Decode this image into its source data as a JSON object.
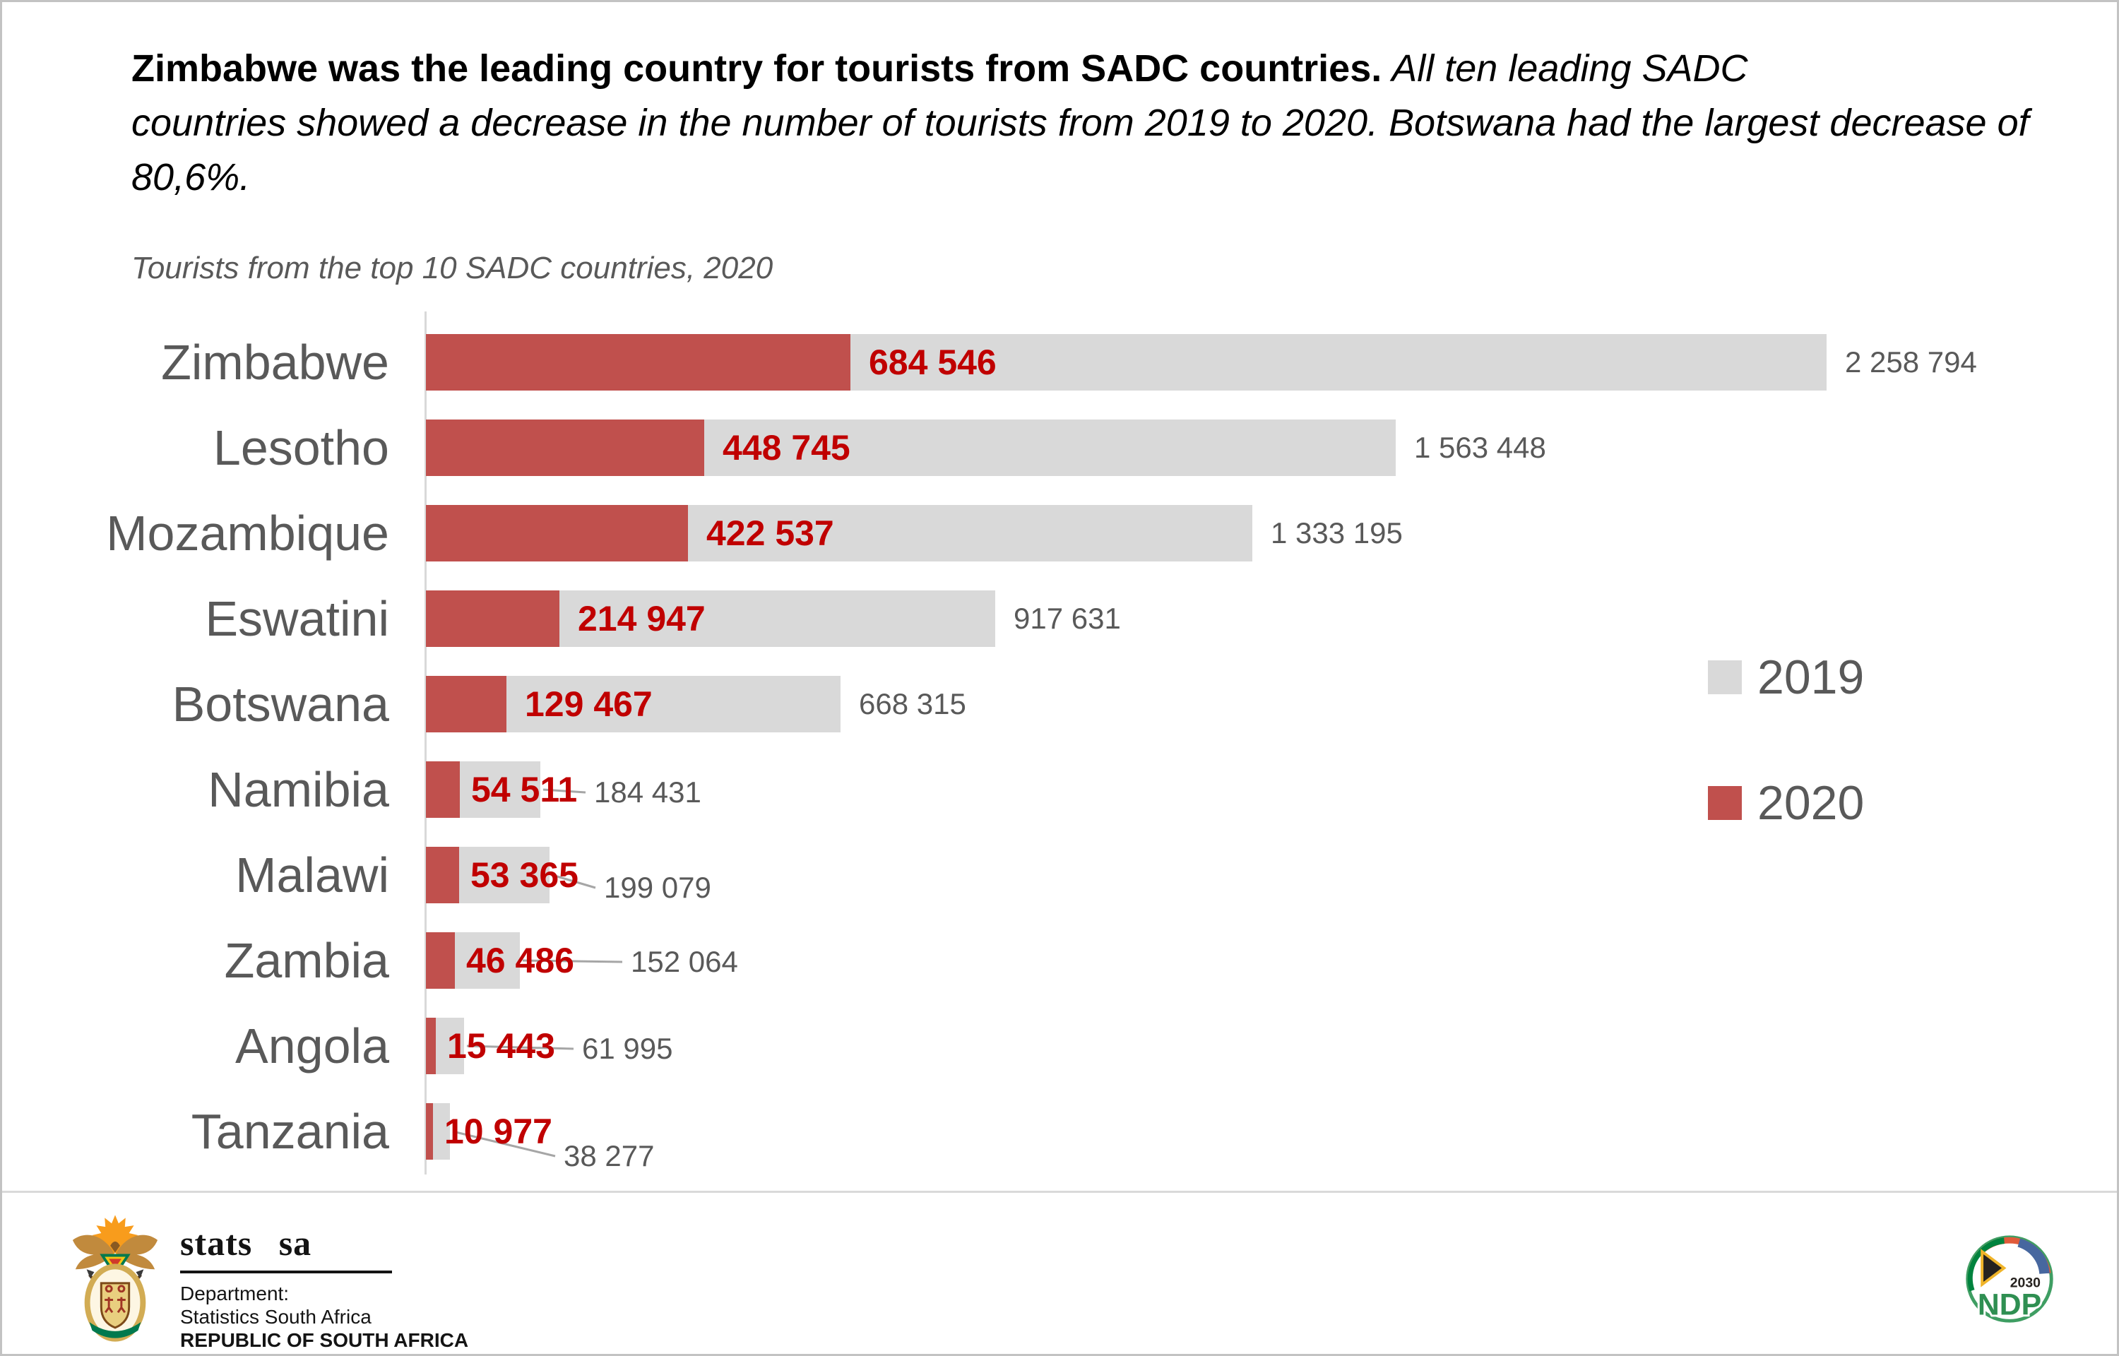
{
  "page": {
    "background": "#ffffff",
    "border_color": "#c3c3c3"
  },
  "headline": {
    "bold": "Zimbabwe was the leading country for tourists from SADC countries.",
    "italic_lines": [
      "All ten leading SADC",
      "countries showed a decrease in the number of tourists from 2019 to 2020. Botswana had the largest decrease of",
      "80,6%."
    ]
  },
  "chart_data": {
    "type": "bar",
    "orientation": "horizontal",
    "title": "Tourists from the top 10 SADC countries, 2020",
    "categories": [
      "Zimbabwe",
      "Lesotho",
      "Mozambique",
      "Eswatini",
      "Botswana",
      "Namibia",
      "Malawi",
      "Zambia",
      "Angola",
      "Tanzania"
    ],
    "series": [
      {
        "name": "2019",
        "color": "#d9d9d9",
        "label_color": "#595959",
        "values": [
          2258794,
          1563448,
          1333195,
          917631,
          668315,
          184431,
          199079,
          152064,
          61995,
          38277
        ],
        "labels": [
          "2 258 794",
          "1 563 448",
          "1 333 195",
          "917 631",
          "668 315",
          "184 431",
          "199 079",
          "152 064",
          "61 995",
          "38 277"
        ]
      },
      {
        "name": "2020",
        "color": "#c0504d",
        "label_color": "#c00000",
        "values": [
          684546,
          448745,
          422537,
          214947,
          129467,
          54511,
          53365,
          46486,
          15443,
          10977
        ],
        "labels": [
          "684 546",
          "448 745",
          "422 537",
          "214 947",
          "129 467",
          "54 511",
          "53 365",
          "46 486",
          "15 443",
          "10 977"
        ]
      }
    ],
    "xmax": 2258794,
    "grid": false,
    "axis_color": "#d9d9d9",
    "leader_line_color": "#a6a6a6",
    "legend_position": "right",
    "callout_hints": {
      "5": {
        "gap": 24,
        "dy": 4
      },
      "6": {
        "gap": 36,
        "dy": 18
      },
      "7": {
        "gap": 80,
        "dy": 2
      },
      "8": {
        "gap": 38,
        "dy": 4
      },
      "9": {
        "gap": 16,
        "dy": 35
      }
    }
  },
  "footer": {
    "stats_sa": {
      "brand": "stats sa",
      "dept_label": "Department:",
      "dept_name": "Statistics South Africa",
      "country": "REPUBLIC OF SOUTH AFRICA"
    },
    "ndp": {
      "year": "2030",
      "acronym": "NDP"
    }
  }
}
